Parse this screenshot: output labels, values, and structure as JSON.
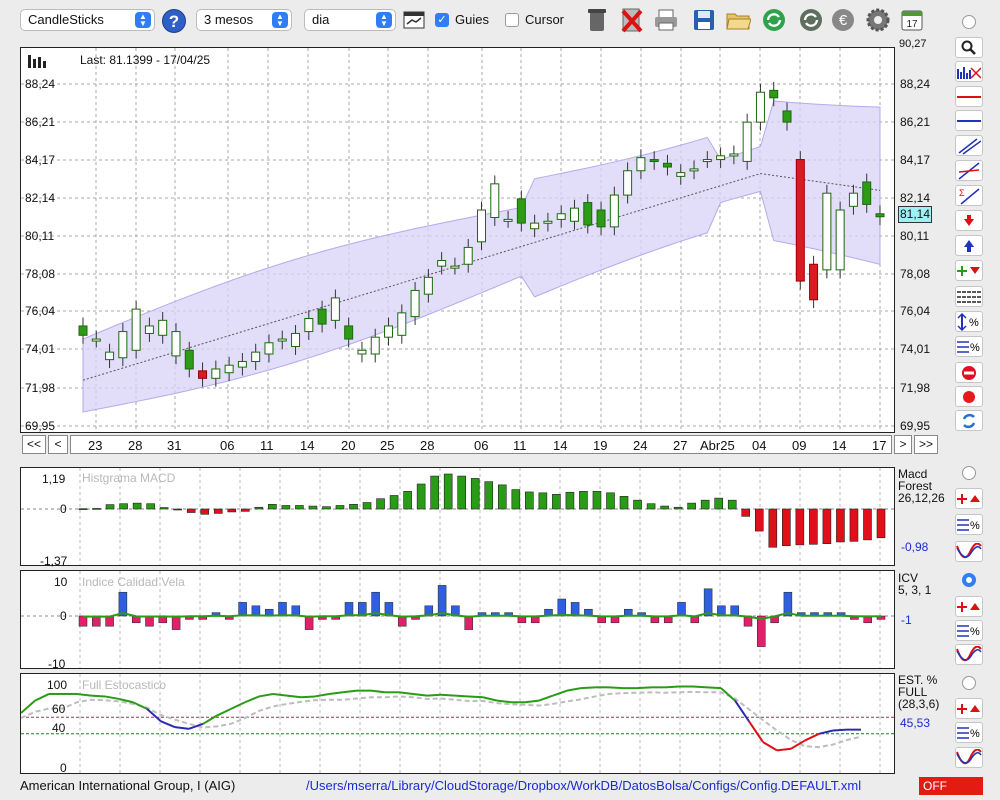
{
  "toolbar": {
    "chart_type": "CandleSticks",
    "period": "3 mesos",
    "interval": "dia",
    "guides_label": "Guies",
    "guides_checked": true,
    "cursor_label": "Cursor",
    "cursor_checked": false,
    "help_glyph": "?",
    "icons": [
      "calendar-chart-icon",
      "trash-icon",
      "delete-icon",
      "printer-icon",
      "save-icon",
      "folder-icon",
      "refresh-icon",
      "reload-icon",
      "euro-icon",
      "gear-icon",
      "calendar-icon"
    ]
  },
  "main_chart": {
    "last_label": "Last: 81.1399 - 17/04/25",
    "current_price": "81,14",
    "y_ticks": [
      "88,24",
      "86,21",
      "84,17",
      "82,14",
      "80,11",
      "78,08",
      "76,04",
      "74,01",
      "71,98",
      "69,95"
    ],
    "top_partial": "90,27",
    "x_ticks": [
      "23",
      "28",
      "31",
      "06",
      "11",
      "14",
      "20",
      "25",
      "28",
      "06",
      "11",
      "14",
      "19",
      "24",
      "27",
      "Abr25",
      "04",
      "09",
      "14",
      "17"
    ],
    "nav": {
      "first": "<<",
      "prev": "<",
      "next": ">",
      "last": ">>"
    },
    "colors": {
      "up": "#2d9b16",
      "down": "#d91c23",
      "band": "#d8d1f6",
      "band_edge": "#b7a9ee"
    }
  },
  "macd": {
    "title": "Histgrama MACD",
    "y_top": "1,19",
    "y_zero": "0",
    "y_bottom": "-1,37",
    "name": "Macd",
    "name2": "Forest",
    "params": "26,12,26",
    "value": "-0,98"
  },
  "icv": {
    "title": "Indice Calidad Vela",
    "y_top": "10",
    "y_zero": "0",
    "y_bottom": "-10",
    "name": "ICV",
    "params": "5, 3, 1",
    "value": "-1"
  },
  "stoch": {
    "title": "Full Estocastico",
    "y_100": "100",
    "y_60": "60",
    "y_40": "40",
    "y_0": "0",
    "name": "EST. %",
    "name2": "FULL",
    "params": "(28,3,6)",
    "value": "45,53"
  },
  "status": {
    "company": "American International Group, I (AIG)",
    "path": "/Users/mserra/Library/CloudStorage/Dropbox/WorkDB/DatosBolsa/Configs/Config.DEFAULT.xml",
    "off": "OFF"
  },
  "chart_data": {
    "type": "candlestick",
    "ylim": [
      69.95,
      90.27
    ],
    "x": [
      "23",
      "28",
      "31",
      "06",
      "11",
      "14",
      "20",
      "25",
      "28",
      "06",
      "11",
      "14",
      "19",
      "24",
      "27",
      "Abr25",
      "04",
      "09",
      "14",
      "17"
    ],
    "macd_histogram": [
      0.01,
      0.02,
      0.15,
      0.18,
      0.2,
      0.18,
      0.05,
      -0.02,
      -0.12,
      -0.18,
      -0.15,
      -0.1,
      -0.08,
      0.06,
      0.16,
      0.12,
      0.12,
      0.1,
      0.08,
      0.12,
      0.16,
      0.22,
      0.35,
      0.46,
      0.6,
      0.85,
      1.12,
      1.19,
      1.12,
      1.04,
      0.93,
      0.82,
      0.66,
      0.58,
      0.55,
      0.5,
      0.57,
      0.6,
      0.6,
      0.55,
      0.43,
      0.3,
      0.18,
      0.1,
      0.06,
      0.2,
      0.3,
      0.37,
      0.3,
      -0.25,
      -0.75,
      -1.3,
      -1.25,
      -1.22,
      -1.2,
      -1.18,
      -1.12,
      -1.1,
      -1.05,
      -0.98
    ],
    "icv_bars": [
      -3,
      -3,
      -3,
      7,
      -2,
      -3,
      -2,
      -4,
      -1,
      -1,
      1,
      -1,
      4,
      3,
      2,
      4,
      3,
      -4,
      -1,
      -1,
      4,
      4,
      7,
      4,
      -3,
      -1,
      3,
      9,
      3,
      -4,
      1,
      1,
      1,
      -2,
      -2,
      2,
      5,
      4,
      2,
      -2,
      -2,
      2,
      1,
      -2,
      -2,
      4,
      -2,
      8,
      3,
      3,
      -3,
      -9,
      -2,
      7,
      1,
      1,
      1,
      1,
      -1,
      -2,
      -1
    ],
    "stoch_k": [
      65,
      80,
      88,
      88,
      88,
      86,
      85,
      82,
      78,
      70,
      55,
      48,
      46,
      52,
      62,
      70,
      78,
      85,
      88,
      86,
      84,
      85,
      88,
      90,
      92,
      92,
      90,
      90,
      88,
      86,
      87,
      86,
      85,
      84,
      80,
      78,
      78,
      80,
      86,
      92,
      95,
      96,
      96,
      95,
      95,
      96,
      96,
      97,
      97,
      96,
      95,
      80,
      55,
      30,
      20,
      22,
      32,
      40,
      44,
      45,
      45
    ]
  }
}
